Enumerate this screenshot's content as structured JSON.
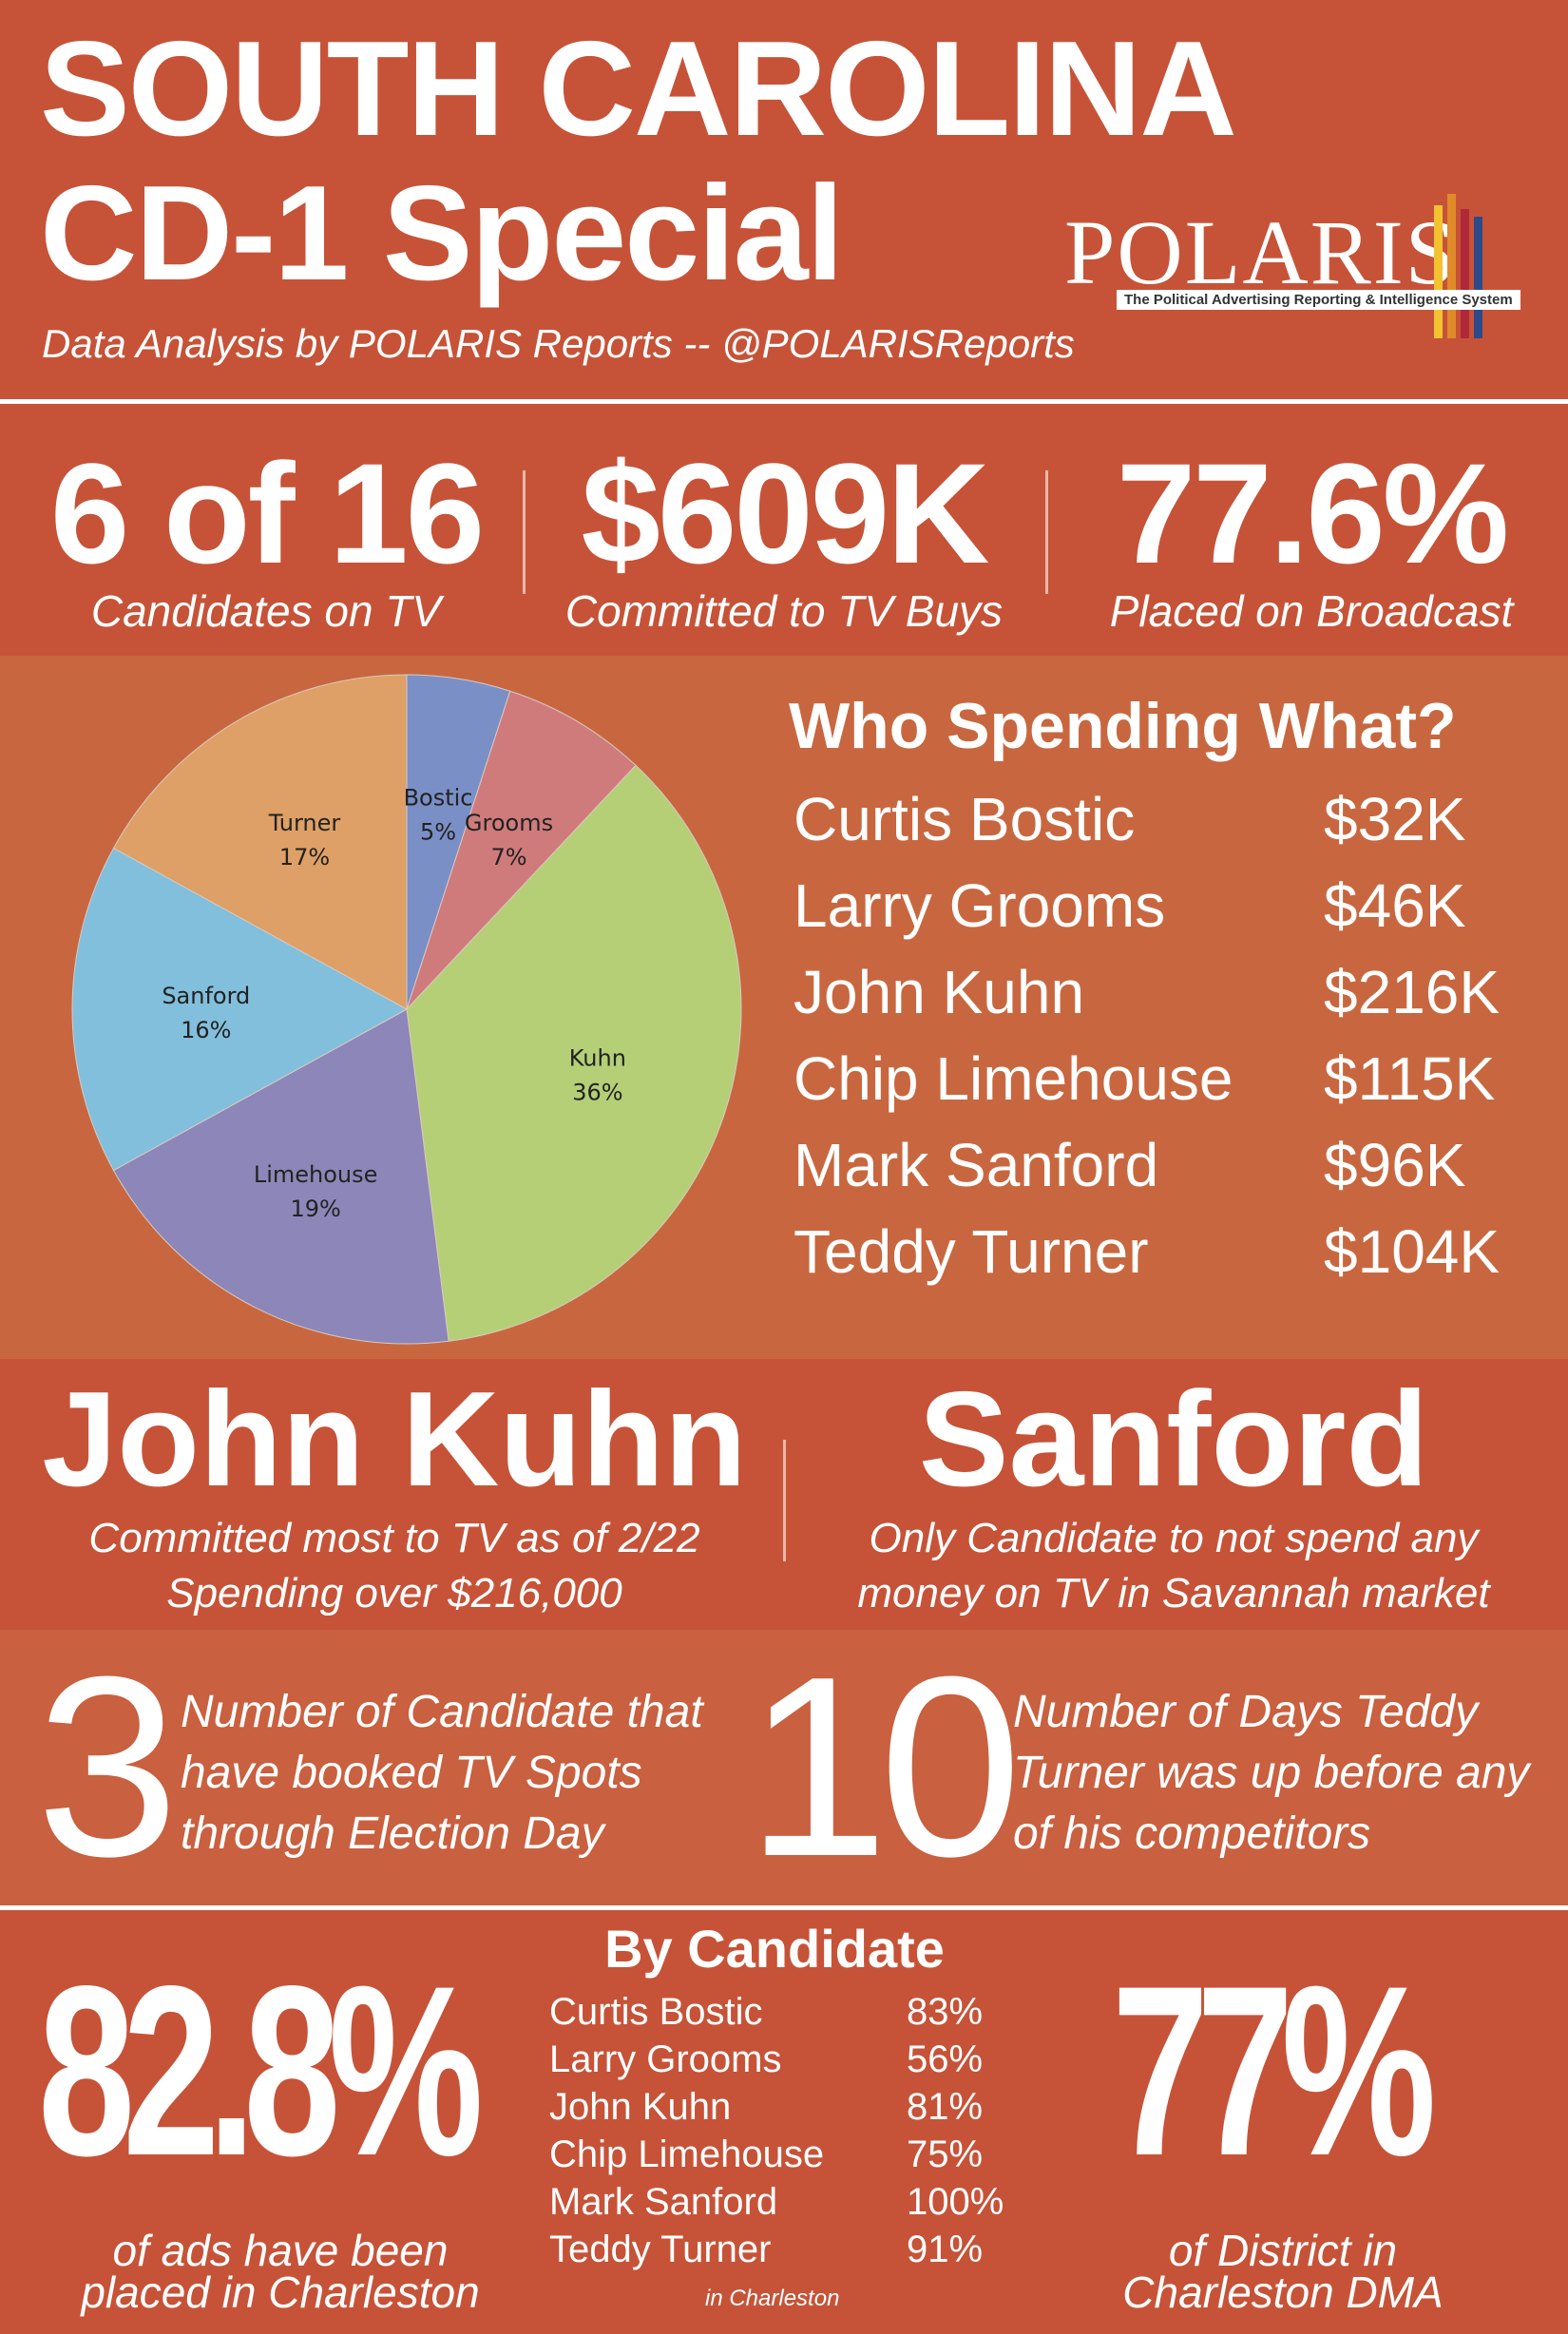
{
  "header": {
    "title": "SOUTH CAROLINA\nCD-1 Special",
    "subtitle": "Data Analysis by POLARIS Reports -- @POLARISReports",
    "logo_text": "POLARIS",
    "logo_tagline": "The Political Advertising Reporting & Intelligence System"
  },
  "top_stats": [
    {
      "value": "6 of 16",
      "caption": "Candidates on TV"
    },
    {
      "value": "$609K",
      "caption": "Committed to TV Buys"
    },
    {
      "value": "77.6%",
      "caption": "Placed on Broadcast"
    }
  ],
  "spending": {
    "title": "Who Spending What?",
    "rows": [
      {
        "name": "Curtis Bostic",
        "amount": "$32K"
      },
      {
        "name": "Larry Grooms",
        "amount": "$46K"
      },
      {
        "name": "John Kuhn",
        "amount": "$216K"
      },
      {
        "name": "Chip Limehouse",
        "amount": "$115K"
      },
      {
        "name": "Mark Sanford",
        "amount": "$96K"
      },
      {
        "name": "Teddy Turner",
        "amount": "$104K"
      }
    ]
  },
  "chart_data": {
    "type": "pie",
    "slices": [
      {
        "label": "Bostic",
        "value": 5,
        "value_label": "5%",
        "color": "#7b8fc7"
      },
      {
        "label": "Grooms",
        "value": 7,
        "value_label": "7%",
        "color": "#cf7b7c"
      },
      {
        "label": "Kuhn",
        "value": 36,
        "value_label": "36%",
        "color": "#b5cf77"
      },
      {
        "label": "Limehouse",
        "value": 19,
        "value_label": "19%",
        "color": "#8d86b8"
      },
      {
        "label": "Sanford",
        "value": 16,
        "value_label": "16%",
        "color": "#82bfdc"
      },
      {
        "label": "Turner",
        "value": 17,
        "value_label": "17%",
        "color": "#dea066"
      }
    ]
  },
  "highlights": [
    {
      "title": "John Kuhn",
      "lines": [
        "Committed most to TV as of 2/22",
        "Spending over $216,000"
      ]
    },
    {
      "title": "Sanford",
      "lines": [
        "Only Candidate to not spend any",
        "money on TV in Savannah market"
      ]
    }
  ],
  "numbers": [
    {
      "value": "3",
      "lines": [
        "Number of Candidate that",
        "have booked TV Spots",
        "through Election Day"
      ]
    },
    {
      "value": "10",
      "lines": [
        "Number of Days Teddy",
        "Turner was up before any",
        "of his competitors"
      ]
    }
  ],
  "bottom": {
    "left_value": "82.8%",
    "left_lines": [
      "of ads have been",
      "placed in Charleston"
    ],
    "right_value": "77%",
    "right_lines": [
      "of District in",
      "Charleston DMA"
    ],
    "by_candidate_title": "By Candidate",
    "by_candidate": [
      {
        "name": "Curtis Bostic",
        "value": "83%"
      },
      {
        "name": "Larry Grooms",
        "value": "56%"
      },
      {
        "name": "John Kuhn",
        "value": "81%"
      },
      {
        "name": "Chip Limehouse",
        "value": "75%"
      },
      {
        "name": "Mark Sanford",
        "value": "100%"
      },
      {
        "name": "Teddy Turner",
        "value": "91%"
      }
    ],
    "footnote": "in Charleston"
  },
  "colors": {
    "background": "#c65338",
    "band": "#c9603f",
    "pie_band": "#c8673f"
  }
}
